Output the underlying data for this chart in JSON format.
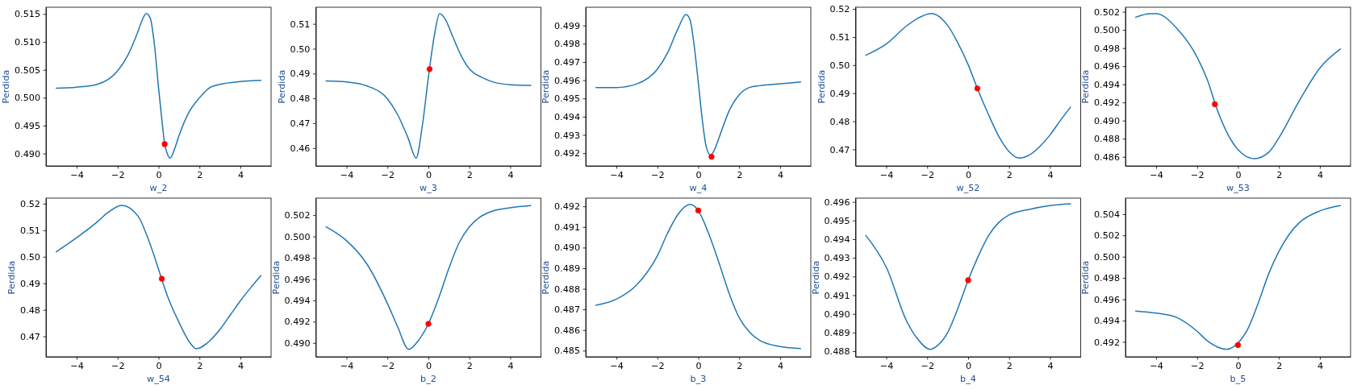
{
  "chart_data": [
    {
      "type": "line",
      "xlabel": "w_2",
      "ylabel": "Perdida",
      "xlim": [
        -5.5,
        5.5
      ],
      "xticks": [
        -4,
        -2,
        0,
        2,
        4
      ],
      "ylim": [
        0.4878,
        0.5162
      ],
      "yticks": [
        {
          "value": 0.49,
          "label": "0.490"
        },
        0.495,
        {
          "value": 0.5,
          "label": "0.500"
        },
        0.505,
        {
          "value": 0.51,
          "label": "0.510"
        },
        0.515
      ],
      "series": [
        {
          "color": "#1f77b4",
          "x": [
            -5,
            -4,
            -3,
            -2,
            -1.5,
            -1,
            -0.8,
            -0.6,
            -0.4,
            -0.2,
            0,
            0.2,
            0.3,
            0.4,
            0.57,
            0.8,
            1,
            1.5,
            2,
            2.5,
            3,
            4,
            5
          ],
          "values": [
            0.5017,
            0.5019,
            0.5024,
            0.5048,
            0.5076,
            0.5119,
            0.5139,
            0.5151,
            0.5142,
            0.5095,
            0.5018,
            0.4948,
            0.4917,
            0.4903,
            0.4892,
            0.491,
            0.4932,
            0.4975,
            0.5,
            0.5018,
            0.5024,
            0.5029,
            0.5031
          ]
        },
        {
          "type": "scatter",
          "color": "#ff0000",
          "marker": "circle",
          "x": [
            0.3
          ],
          "values": [
            0.4917
          ]
        }
      ]
    },
    {
      "type": "line",
      "xlabel": "w_3",
      "ylabel": "Perdida",
      "xlim": [
        -5.5,
        5.5
      ],
      "xticks": [
        -4,
        -2,
        0,
        2,
        4
      ],
      "ylim": [
        0.4528,
        0.5167
      ],
      "yticks": [
        0.46,
        0.47,
        0.48,
        0.49,
        {
          "value": 0.5,
          "label": "0.50"
        },
        0.51
      ],
      "series": [
        {
          "color": "#1f77b4",
          "x": [
            -5,
            -4,
            -3,
            -2,
            -1.5,
            -1,
            -0.6,
            -0.3,
            0,
            0.3,
            0.55,
            0.8,
            1.2,
            1.6,
            2,
            2.6,
            3.2,
            4,
            5
          ],
          "values": [
            0.487,
            0.4866,
            0.485,
            0.4798,
            0.4734,
            0.4642,
            0.456,
            0.4688,
            0.4885,
            0.5058,
            0.5141,
            0.5122,
            0.5047,
            0.4972,
            0.4919,
            0.4885,
            0.4865,
            0.4855,
            0.4852
          ]
        },
        {
          "type": "scatter",
          "color": "#ff0000",
          "marker": "circle",
          "x": [
            0.06
          ],
          "values": [
            0.4918
          ]
        }
      ]
    },
    {
      "type": "line",
      "xlabel": "w_4",
      "ylabel": "Perdida",
      "xlim": [
        -5.5,
        5.5
      ],
      "xticks": [
        -4,
        -2,
        0,
        2,
        4
      ],
      "ylim": [
        0.4913,
        0.5
      ],
      "yticks": [
        0.492,
        0.493,
        0.494,
        0.495,
        0.496,
        0.497,
        0.498,
        0.499
      ],
      "series": [
        {
          "color": "#1f77b4",
          "x": [
            -5,
            -4,
            -3,
            -2,
            -1.5,
            -1,
            -0.6,
            -0.4,
            -0.2,
            0,
            0.2,
            0.4,
            0.6,
            0.8,
            1,
            1.5,
            2,
            2.5,
            3,
            4,
            5
          ],
          "values": [
            0.4956,
            0.4956,
            0.4958,
            0.4966,
            0.4975,
            0.4988,
            0.4996,
            0.4993,
            0.4979,
            0.4959,
            0.4938,
            0.4923,
            0.4919,
            0.4922,
            0.4928,
            0.4943,
            0.4952,
            0.4956,
            0.4957,
            0.4958,
            0.4959
          ]
        },
        {
          "type": "scatter",
          "color": "#ff0000",
          "marker": "circle",
          "x": [
            0.65
          ],
          "values": [
            0.4918
          ]
        }
      ]
    },
    {
      "type": "line",
      "xlabel": "w_52",
      "ylabel": "Perdida",
      "xlim": [
        -5.5,
        5.5
      ],
      "xticks": [
        -4,
        -2,
        0,
        2,
        4
      ],
      "ylim": [
        0.4641,
        0.5206
      ],
      "yticks": [
        0.47,
        0.48,
        0.49,
        {
          "value": 0.5,
          "label": "0.50"
        },
        0.51,
        0.52
      ],
      "series": [
        {
          "color": "#1f77b4",
          "x": [
            -5,
            -4,
            -3,
            -2.5,
            -1.8,
            -1,
            -0.5,
            0,
            0.45,
            1,
            1.5,
            2,
            2.5,
            3,
            3.5,
            4,
            4.5,
            5
          ],
          "values": [
            0.5035,
            0.5075,
            0.514,
            0.5165,
            0.5184,
            0.5141,
            0.5079,
            0.5002,
            0.4917,
            0.4823,
            0.4746,
            0.4692,
            0.4669,
            0.468,
            0.471,
            0.4751,
            0.4802,
            0.485
          ]
        },
        {
          "type": "scatter",
          "color": "#ff0000",
          "marker": "circle",
          "x": [
            0.45
          ],
          "values": [
            0.4917
          ]
        }
      ]
    },
    {
      "type": "line",
      "xlabel": "w_53",
      "ylabel": "Perdida",
      "xlim": [
        -5.5,
        5.5
      ],
      "xticks": [
        -4,
        -2,
        0,
        2,
        4
      ],
      "ylim": [
        0.485,
        0.5025
      ],
      "yticks": [
        0.486,
        0.488,
        {
          "value": 0.49,
          "label": "0.490"
        },
        0.492,
        0.494,
        0.496,
        0.498,
        {
          "value": 0.5,
          "label": "0.500"
        },
        0.502
      ],
      "series": [
        {
          "color": "#1f77b4",
          "x": [
            -5,
            -4.3,
            -4,
            -3,
            -2,
            -1.5,
            -1,
            -0.5,
            0,
            0.8,
            1.5,
            2,
            3,
            4,
            5
          ],
          "values": [
            0.5014,
            0.5018,
            0.5018,
            0.5002,
            0.497,
            0.4945,
            0.4911,
            0.4885,
            0.4868,
            0.4858,
            0.4865,
            0.4881,
            0.4922,
            0.4958,
            0.4979
          ]
        },
        {
          "type": "scatter",
          "color": "#ff0000",
          "marker": "circle",
          "x": [
            -1.13
          ],
          "values": [
            0.4918
          ]
        }
      ]
    },
    {
      "type": "line",
      "xlabel": "w_54",
      "ylabel": "Perdida",
      "xlim": [
        -5.5,
        5.5
      ],
      "xticks": [
        -4,
        -2,
        0,
        2,
        4
      ],
      "ylim": [
        0.4623,
        0.5221
      ],
      "yticks": [
        0.47,
        0.48,
        0.49,
        {
          "value": 0.5,
          "label": "0.50"
        },
        0.51,
        0.52
      ],
      "series": [
        {
          "color": "#1f77b4",
          "x": [
            -5,
            -4,
            -3,
            -2.5,
            -1.8,
            -1,
            -0.5,
            0,
            0.15,
            0.5,
            1,
            1.5,
            1.85,
            2.5,
            3,
            3.5,
            4,
            4.5,
            5
          ],
          "values": [
            0.5019,
            0.5072,
            0.5131,
            0.5165,
            0.5194,
            0.5153,
            0.5066,
            0.4953,
            0.4917,
            0.4839,
            0.4753,
            0.468,
            0.4653,
            0.4683,
            0.4726,
            0.478,
            0.4834,
            0.4883,
            0.4929
          ]
        },
        {
          "type": "scatter",
          "color": "#ff0000",
          "marker": "circle",
          "x": [
            0.16
          ],
          "values": [
            0.4917
          ]
        }
      ]
    },
    {
      "type": "line",
      "xlabel": "b_2",
      "ylabel": "Perdida",
      "xlim": [
        -5.5,
        5.5
      ],
      "xticks": [
        -4,
        -2,
        0,
        2,
        4
      ],
      "ylim": [
        0.4887,
        0.5036
      ],
      "yticks": [
        {
          "value": 0.49,
          "label": "0.490"
        },
        0.492,
        0.494,
        0.496,
        0.498,
        {
          "value": 0.5,
          "label": "0.500"
        },
        0.502
      ],
      "series": [
        {
          "color": "#1f77b4",
          "x": [
            -5,
            -4,
            -3,
            -2,
            -1.5,
            -0.96,
            -0.5,
            0,
            0.5,
            1,
            1.5,
            2,
            2.5,
            3,
            4,
            5
          ],
          "values": [
            0.5009,
            0.4996,
            0.4974,
            0.4937,
            0.4915,
            0.4894,
            0.4902,
            0.4918,
            0.4942,
            0.497,
            0.4994,
            0.5009,
            0.5018,
            0.5023,
            0.5027,
            0.5029
          ]
        },
        {
          "type": "scatter",
          "color": "#ff0000",
          "marker": "circle",
          "x": [
            0
          ],
          "values": [
            0.4918
          ]
        }
      ]
    },
    {
      "type": "line",
      "xlabel": "b_3",
      "ylabel": "Perdida",
      "xlim": [
        -5.5,
        5.5
      ],
      "xticks": [
        -4,
        -2,
        0,
        2,
        4
      ],
      "ylim": [
        0.4847,
        0.4924
      ],
      "yticks": [
        0.485,
        0.486,
        0.487,
        0.488,
        0.489,
        {
          "value": 0.49,
          "label": "0.490"
        },
        0.491,
        0.492
      ],
      "series": [
        {
          "color": "#1f77b4",
          "x": [
            -5,
            -4,
            -3,
            -2,
            -1.5,
            -1,
            -0.4,
            0,
            0.5,
            1,
            1.5,
            2,
            2.5,
            3,
            4,
            5
          ],
          "values": [
            0.4872,
            0.4875,
            0.4882,
            0.4896,
            0.4907,
            0.4916,
            0.4921,
            0.4918,
            0.4907,
            0.4893,
            0.4878,
            0.4866,
            0.4859,
            0.4855,
            0.4852,
            0.4851
          ]
        },
        {
          "type": "scatter",
          "color": "#ff0000",
          "marker": "circle",
          "x": [
            0
          ],
          "values": [
            0.4918
          ]
        }
      ]
    },
    {
      "type": "line",
      "xlabel": "b_4",
      "ylabel": "Perdida",
      "xlim": [
        -5.5,
        5.5
      ],
      "xticks": [
        -4,
        -2,
        0,
        2,
        4
      ],
      "ylim": [
        0.4877,
        0.4962
      ],
      "yticks": [
        0.488,
        0.489,
        {
          "value": 0.49,
          "label": "0.490"
        },
        0.491,
        0.492,
        0.493,
        0.494,
        0.495,
        0.496
      ],
      "series": [
        {
          "color": "#1f77b4",
          "x": [
            -5,
            -4,
            -3,
            -2.5,
            -1.85,
            -1.5,
            -1,
            -0.5,
            0,
            0.5,
            1,
            1.5,
            2,
            3,
            4,
            5
          ],
          "values": [
            0.4942,
            0.4925,
            0.4896,
            0.4887,
            0.4881,
            0.4883,
            0.489,
            0.4903,
            0.4918,
            0.4931,
            0.4942,
            0.4949,
            0.4953,
            0.4956,
            0.4958,
            0.4959
          ]
        },
        {
          "type": "scatter",
          "color": "#ff0000",
          "marker": "circle",
          "x": [
            0
          ],
          "values": [
            0.4918
          ]
        }
      ]
    },
    {
      "type": "line",
      "xlabel": "b_5",
      "ylabel": "Perdida",
      "xlim": [
        -5.5,
        5.5
      ],
      "xticks": [
        -4,
        -2,
        0,
        2,
        4
      ],
      "ylim": [
        0.4906,
        0.5055
      ],
      "yticks": [
        0.492,
        0.494,
        0.496,
        0.498,
        {
          "value": 0.5,
          "label": "0.500"
        },
        0.502,
        0.504
      ],
      "series": [
        {
          "color": "#1f77b4",
          "x": [
            -5,
            -4,
            -3,
            -2,
            -1.5,
            -0.55,
            0,
            0.5,
            1,
            1.5,
            2,
            2.5,
            3,
            4,
            5
          ],
          "values": [
            0.4949,
            0.4947,
            0.4943,
            0.493,
            0.4921,
            0.4913,
            0.4919,
            0.4933,
            0.4957,
            0.4984,
            0.5005,
            0.5021,
            0.5032,
            0.5043,
            0.5048
          ]
        },
        {
          "type": "scatter",
          "color": "#ff0000",
          "marker": "circle",
          "x": [
            0
          ],
          "values": [
            0.4917
          ]
        }
      ]
    }
  ]
}
